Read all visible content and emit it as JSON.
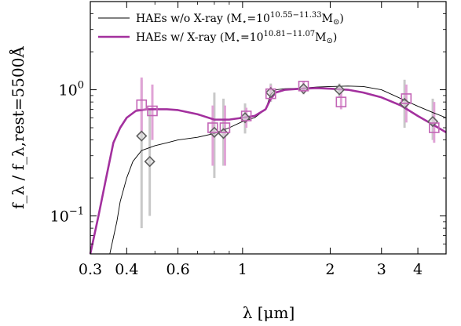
{
  "chart_data": {
    "type": "line",
    "xlabel": "λ [μm]",
    "ylabel": "f_λ / f_λ,rest=5500Å",
    "xscale": "log",
    "yscale": "log",
    "xlim": [
      0.3,
      5.0
    ],
    "ylim": [
      0.05,
      5.0
    ],
    "grid": false,
    "legend_position": "top",
    "x_ticks": [
      {
        "value": 0.3,
        "label": "0.3"
      },
      {
        "value": 0.4,
        "label": "0.4"
      },
      {
        "value": 0.6,
        "label": "0.6"
      },
      {
        "value": 1.0,
        "label": "1"
      },
      {
        "value": 2.0,
        "label": "2"
      },
      {
        "value": 3.0,
        "label": "3"
      },
      {
        "value": 4.0,
        "label": "4"
      }
    ],
    "y_ticks": [
      {
        "value": 0.1,
        "label": "10^-1",
        "base": "10",
        "exp": "−1"
      },
      {
        "value": 1.0,
        "label": "10^0",
        "base": "10",
        "exp": "0"
      }
    ],
    "series": [
      {
        "name": "HAEs w/o X-ray (M⋆=10^10.55−11.33 M⊙)",
        "legend_label": {
          "prefix": "HAEs w/o X-ray (M",
          "star": "⋆",
          "mid": "=10",
          "exp": "10.55−11.33",
          "suffix": "M",
          "sun": "⊙",
          "close": ")"
        },
        "color": "#000000",
        "line_width": 0.9,
        "marker": "diamond",
        "marker_color": "#606060",
        "errorbar_color": "#c8c8c8",
        "sed": [
          [
            0.3,
            0.02
          ],
          [
            0.33,
            0.03
          ],
          [
            0.35,
            0.05
          ],
          [
            0.37,
            0.09
          ],
          [
            0.38,
            0.13
          ],
          [
            0.4,
            0.2
          ],
          [
            0.42,
            0.27
          ],
          [
            0.45,
            0.33
          ],
          [
            0.5,
            0.36
          ],
          [
            0.55,
            0.38
          ],
          [
            0.6,
            0.4
          ],
          [
            0.7,
            0.42
          ],
          [
            0.8,
            0.45
          ],
          [
            0.9,
            0.5
          ],
          [
            1.0,
            0.56
          ],
          [
            1.1,
            0.6
          ],
          [
            1.2,
            0.7
          ],
          [
            1.25,
            0.92
          ],
          [
            1.3,
            1.0
          ],
          [
            1.4,
            1.02
          ],
          [
            1.6,
            1.03
          ],
          [
            1.8,
            1.05
          ],
          [
            2.0,
            1.06
          ],
          [
            2.3,
            1.07
          ],
          [
            2.6,
            1.06
          ],
          [
            3.0,
            1.0
          ],
          [
            3.5,
            0.85
          ],
          [
            4.0,
            0.74
          ],
          [
            4.5,
            0.66
          ],
          [
            5.0,
            0.6
          ]
        ],
        "points": [
          {
            "x": 0.45,
            "y": 0.43,
            "lo": 0.08,
            "hi": 1.2
          },
          {
            "x": 0.48,
            "y": 0.27,
            "lo": 0.1,
            "hi": 0.7
          },
          {
            "x": 0.8,
            "y": 0.46,
            "lo": 0.2,
            "hi": 0.95
          },
          {
            "x": 0.86,
            "y": 0.45,
            "lo": 0.25,
            "hi": 0.85
          },
          {
            "x": 1.02,
            "y": 0.6,
            "lo": 0.45,
            "hi": 0.78
          },
          {
            "x": 1.25,
            "y": 0.95,
            "lo": 0.8,
            "hi": 1.12
          },
          {
            "x": 1.62,
            "y": 1.02,
            "lo": 0.92,
            "hi": 1.12
          },
          {
            "x": 2.15,
            "y": 1.0,
            "lo": 0.88,
            "hi": 1.12
          },
          {
            "x": 3.6,
            "y": 0.78,
            "lo": 0.5,
            "hi": 1.2
          },
          {
            "x": 4.5,
            "y": 0.56,
            "lo": 0.4,
            "hi": 0.85
          }
        ]
      },
      {
        "name": "HAEs w/ X-ray (M⋆=10^10.81−11.07 M⊙)",
        "legend_label": {
          "prefix": "HAEs w/ X-ray (M",
          "star": "⋆",
          "mid": "=10",
          "exp": "10.81−11.07",
          "suffix": "M",
          "sun": "⊙",
          "close": ")"
        },
        "color": "#a3309e",
        "line_width": 2.6,
        "marker": "square",
        "marker_color": "#c264b5",
        "errorbar_color": "#e0a3d6",
        "sed": [
          [
            0.3,
            0.05
          ],
          [
            0.32,
            0.1
          ],
          [
            0.34,
            0.2
          ],
          [
            0.36,
            0.38
          ],
          [
            0.38,
            0.5
          ],
          [
            0.4,
            0.6
          ],
          [
            0.43,
            0.68
          ],
          [
            0.47,
            0.7
          ],
          [
            0.5,
            0.7
          ],
          [
            0.55,
            0.7
          ],
          [
            0.6,
            0.69
          ],
          [
            0.7,
            0.64
          ],
          [
            0.8,
            0.58
          ],
          [
            0.9,
            0.58
          ],
          [
            1.0,
            0.6
          ],
          [
            1.1,
            0.62
          ],
          [
            1.2,
            0.7
          ],
          [
            1.25,
            0.85
          ],
          [
            1.3,
            0.95
          ],
          [
            1.4,
            1.0
          ],
          [
            1.6,
            1.02
          ],
          [
            1.8,
            1.03
          ],
          [
            2.0,
            1.02
          ],
          [
            2.3,
            1.0
          ],
          [
            2.6,
            0.95
          ],
          [
            3.0,
            0.87
          ],
          [
            3.5,
            0.75
          ],
          [
            4.0,
            0.62
          ],
          [
            4.5,
            0.53
          ],
          [
            5.0,
            0.46
          ]
        ],
        "points": [
          {
            "x": 0.45,
            "y": 0.76,
            "lo": 0.45,
            "hi": 1.25
          },
          {
            "x": 0.49,
            "y": 0.68,
            "lo": 0.4,
            "hi": 1.1
          },
          {
            "x": 0.79,
            "y": 0.5,
            "lo": 0.25,
            "hi": 0.75
          },
          {
            "x": 0.87,
            "y": 0.5,
            "lo": 0.25,
            "hi": 0.75
          },
          {
            "x": 1.03,
            "y": 0.62,
            "lo": 0.5,
            "hi": 0.72
          },
          {
            "x": 1.25,
            "y": 0.93,
            "lo": 0.82,
            "hi": 1.08
          },
          {
            "x": 1.62,
            "y": 1.07,
            "lo": 0.95,
            "hi": 1.18
          },
          {
            "x": 2.18,
            "y": 0.8,
            "lo": 0.7,
            "hi": 0.95
          },
          {
            "x": 3.65,
            "y": 0.85,
            "lo": 0.55,
            "hi": 1.1
          },
          {
            "x": 4.55,
            "y": 0.5,
            "lo": 0.38,
            "hi": 0.8
          }
        ]
      }
    ]
  }
}
